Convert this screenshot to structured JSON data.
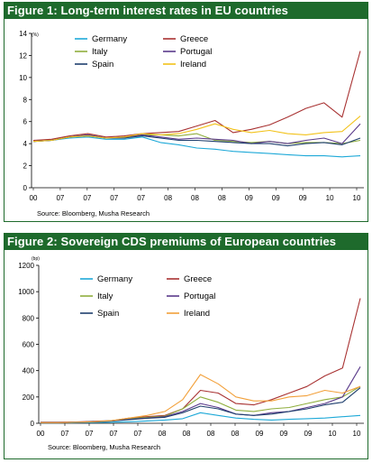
{
  "chart_data": [
    {
      "type": "line",
      "title": "Figure 1: Long-term interest rates in EU countries",
      "unit": "(%)",
      "source": "Source: Bloomberg, Musha Research",
      "ylim": [
        0,
        14
      ],
      "yticks": [
        "0",
        "2",
        "4",
        "6",
        "8",
        "10",
        "12",
        "14"
      ],
      "x_labels": [
        "00",
        "07",
        "07",
        "07",
        "07",
        "08",
        "08",
        "08",
        "09",
        "09",
        "09",
        "10",
        "10"
      ],
      "grid": false,
      "legend": "top",
      "series": [
        {
          "name": "Germany",
          "color": "#1ea9d8",
          "values": [
            4.2,
            4.3,
            4.5,
            4.6,
            4.4,
            4.4,
            4.6,
            4.1,
            3.9,
            3.6,
            3.5,
            3.3,
            3.2,
            3.1,
            3.0,
            2.9,
            2.9,
            2.8,
            2.9
          ]
        },
        {
          "name": "Greece",
          "color": "#a83232",
          "values": [
            4.3,
            4.4,
            4.7,
            4.9,
            4.6,
            4.7,
            4.9,
            5.0,
            5.1,
            5.6,
            6.1,
            5.0,
            5.3,
            5.7,
            6.4,
            7.2,
            7.7,
            6.4,
            12.4
          ]
        },
        {
          "name": "Italy",
          "color": "#8fae3d",
          "values": [
            4.2,
            4.3,
            4.6,
            4.8,
            4.5,
            4.5,
            4.8,
            4.8,
            4.7,
            4.9,
            4.3,
            4.2,
            4.1,
            4.2,
            4.0,
            4.1,
            4.1,
            4.0,
            4.3
          ]
        },
        {
          "name": "Portugal",
          "color": "#5a3a8a",
          "values": [
            4.2,
            4.3,
            4.6,
            4.8,
            4.5,
            4.6,
            4.8,
            4.6,
            4.4,
            4.5,
            4.4,
            4.3,
            4.0,
            4.2,
            4.0,
            4.3,
            4.5,
            4.0,
            5.8
          ]
        },
        {
          "name": "Spain",
          "color": "#1f3f6e",
          "values": [
            4.2,
            4.3,
            4.6,
            4.7,
            4.5,
            4.5,
            4.7,
            4.5,
            4.3,
            4.3,
            4.2,
            4.1,
            4.0,
            4.0,
            3.8,
            4.0,
            4.1,
            3.9,
            4.5
          ]
        },
        {
          "name": "Ireland",
          "color": "#f2c21a",
          "values": [
            4.2,
            4.3,
            4.6,
            4.7,
            4.5,
            4.6,
            4.9,
            4.8,
            4.9,
            5.3,
            5.8,
            5.3,
            5.0,
            5.2,
            4.9,
            4.8,
            5.0,
            5.1,
            6.5
          ]
        }
      ]
    },
    {
      "type": "line",
      "title": "Figure 2: Sovereign CDS premiums of European countries",
      "unit": "(bp)",
      "source": "Source: Bloomberg, Musha Research",
      "ylim": [
        0,
        1200
      ],
      "yticks": [
        "0",
        "200",
        "400",
        "600",
        "800",
        "1000",
        "1200"
      ],
      "x_labels": [
        "00",
        "07",
        "07",
        "07",
        "07",
        "08",
        "08",
        "08",
        "08",
        "09",
        "09",
        "09",
        "10",
        "10"
      ],
      "grid": false,
      "legend": "top",
      "series": [
        {
          "name": "Germany",
          "color": "#1ea9d8",
          "values": [
            3,
            3,
            5,
            6,
            8,
            12,
            18,
            25,
            35,
            80,
            60,
            40,
            30,
            25,
            30,
            35,
            40,
            50,
            60
          ]
        },
        {
          "name": "Greece",
          "color": "#a83232",
          "values": [
            8,
            8,
            10,
            15,
            20,
            40,
            50,
            60,
            110,
            250,
            230,
            150,
            140,
            180,
            230,
            280,
            360,
            420,
            950
          ]
        },
        {
          "name": "Italy",
          "color": "#8fae3d",
          "values": [
            5,
            5,
            8,
            12,
            20,
            35,
            45,
            55,
            110,
            200,
            160,
            100,
            90,
            110,
            120,
            150,
            180,
            200,
            280
          ]
        },
        {
          "name": "Portugal",
          "color": "#5a3a8a",
          "values": [
            5,
            5,
            8,
            12,
            18,
            30,
            40,
            50,
            90,
            150,
            120,
            70,
            60,
            80,
            90,
            120,
            150,
            200,
            430
          ]
        },
        {
          "name": "Spain",
          "color": "#1f3f6e",
          "values": [
            5,
            5,
            8,
            12,
            18,
            28,
            38,
            45,
            80,
            130,
            110,
            70,
            60,
            70,
            90,
            110,
            140,
            160,
            270
          ]
        },
        {
          "name": "Ireland",
          "color": "#f2a03a",
          "values": [
            5,
            5,
            8,
            12,
            20,
            40,
            60,
            90,
            180,
            370,
            300,
            200,
            170,
            170,
            200,
            210,
            250,
            230,
            280
          ]
        }
      ]
    }
  ]
}
